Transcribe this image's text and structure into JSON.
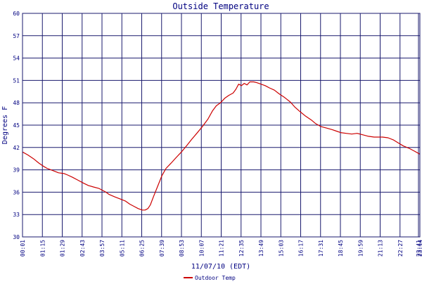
{
  "chart_data": {
    "type": "line",
    "title": "Outside Temperature",
    "xlabel": "11/07/10 (EDT)",
    "ylabel": "Degrees F",
    "ylim": [
      30,
      60
    ],
    "y_ticks": [
      30,
      33,
      36,
      39,
      42,
      45,
      48,
      51,
      54,
      57,
      60
    ],
    "x_ticks": [
      "00:01",
      "01:15",
      "01:29",
      "02:43",
      "03:57",
      "05:11",
      "06:25",
      "07:39",
      "08:53",
      "10:07",
      "11:21",
      "12:35",
      "13:49",
      "15:03",
      "16:17",
      "17:31",
      "18:45",
      "19:59",
      "21:13",
      "22:27",
      "23:41",
      "23:44"
    ],
    "grid": true,
    "legend_position": "bottom",
    "colors": {
      "series": "#cc0000",
      "grid": "#1a1a6e",
      "text": "#000080"
    },
    "series": [
      {
        "name": "Outdoor Temp",
        "x": [
          "00:01",
          "00:20",
          "00:40",
          "01:00",
          "01:15",
          "01:29",
          "01:50",
          "02:10",
          "02:30",
          "02:43",
          "03:00",
          "03:20",
          "03:40",
          "03:57",
          "04:15",
          "04:35",
          "05:00",
          "05:11",
          "05:30",
          "05:50",
          "06:10",
          "06:25",
          "06:40",
          "06:55",
          "07:10",
          "07:20",
          "07:30",
          "07:39",
          "07:50",
          "08:05",
          "08:20",
          "08:35",
          "08:53",
          "09:10",
          "09:30",
          "09:50",
          "10:07",
          "10:25",
          "10:45",
          "11:05",
          "11:21",
          "11:35",
          "11:50",
          "12:05",
          "12:20",
          "12:35",
          "12:45",
          "12:55",
          "13:05",
          "13:15",
          "13:25",
          "13:35",
          "13:49",
          "14:00",
          "14:15",
          "14:30",
          "14:45",
          "15:03",
          "15:20",
          "15:40",
          "16:00",
          "16:17",
          "16:35",
          "16:55",
          "17:15",
          "17:31",
          "17:50",
          "18:10",
          "18:30",
          "18:45",
          "19:00",
          "19:20",
          "19:40",
          "19:59",
          "20:20",
          "20:40",
          "21:00",
          "21:13",
          "21:30",
          "21:50",
          "22:10",
          "22:27",
          "22:45",
          "23:05",
          "23:25",
          "23:44"
        ],
        "values": [
          41.4,
          41.0,
          40.5,
          39.9,
          39.5,
          39.2,
          38.9,
          38.6,
          38.5,
          38.3,
          38.0,
          37.6,
          37.2,
          36.9,
          36.7,
          36.5,
          36.0,
          35.7,
          35.4,
          35.1,
          34.8,
          34.4,
          34.1,
          33.8,
          33.6,
          33.6,
          33.8,
          34.3,
          35.4,
          36.8,
          38.2,
          39.2,
          39.9,
          40.6,
          41.4,
          42.3,
          43.1,
          43.9,
          44.8,
          45.8,
          46.9,
          47.6,
          48.0,
          48.6,
          49.0,
          49.3,
          49.8,
          50.5,
          50.3,
          50.6,
          50.4,
          50.8,
          50.8,
          50.7,
          50.5,
          50.3,
          50.0,
          49.7,
          49.2,
          48.7,
          48.1,
          47.4,
          46.8,
          46.2,
          45.7,
          45.2,
          44.8,
          44.6,
          44.4,
          44.2,
          44.0,
          43.9,
          43.8,
          43.9,
          43.7,
          43.5,
          43.4,
          43.4,
          43.4,
          43.3,
          43.0,
          42.6,
          42.2,
          41.9,
          41.5,
          41.1
        ]
      }
    ]
  }
}
